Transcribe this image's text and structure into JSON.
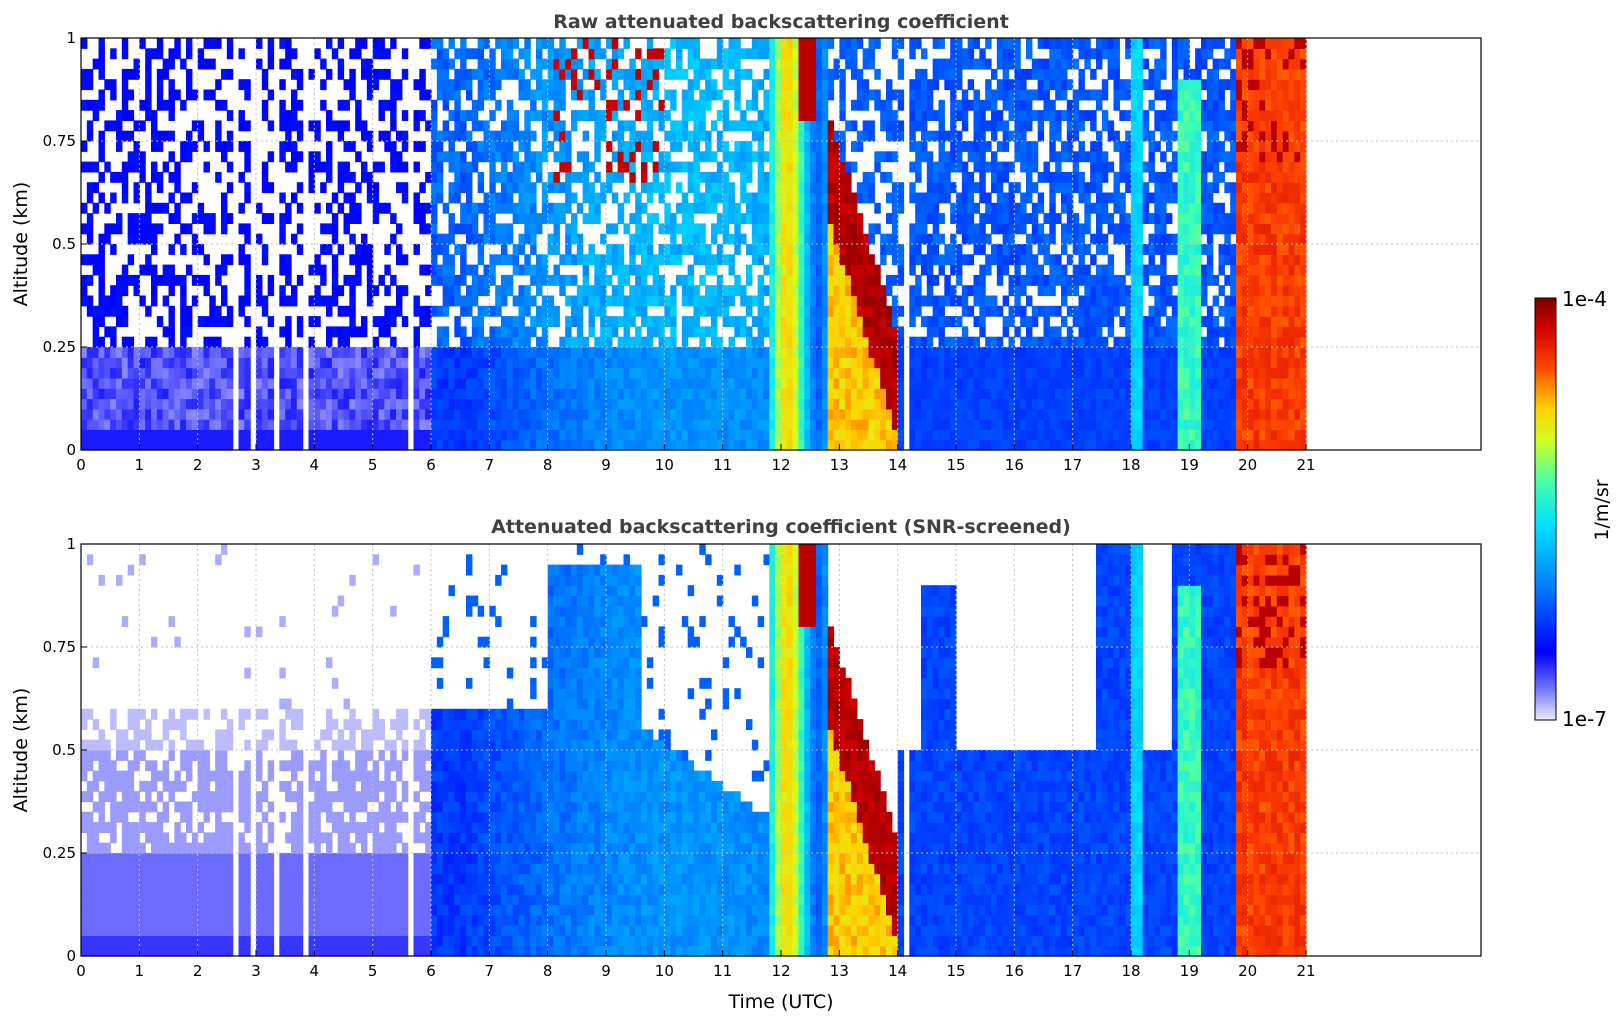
{
  "chart_data": [
    {
      "type": "heatmap",
      "title": "Raw attenuated backscattering coefficient",
      "ylabel": "Altitude (km)",
      "xlabel": "",
      "xlim": [
        0,
        24
      ],
      "ylim": [
        0,
        1
      ],
      "x_ticks": [
        "0",
        "1",
        "2",
        "3",
        "4",
        "5",
        "6",
        "7",
        "8",
        "9",
        "10",
        "11",
        "12",
        "13",
        "14",
        "15",
        "16",
        "17",
        "18",
        "19",
        "20",
        "21"
      ],
      "y_ticks": [
        "0",
        "0.25",
        "0.5",
        "0.75",
        "1"
      ],
      "data_end_hour": 21,
      "grid": true,
      "regimes": [
        {
          "hours": [
            0,
            6
          ],
          "description": "noisy",
          "level": "low"
        },
        {
          "hours": [
            6,
            11.8
          ],
          "level": "moderate"
        },
        {
          "hours": [
            11.8,
            12.8
          ],
          "level": "high"
        },
        {
          "hours": [
            12.8,
            14.0
          ],
          "level": "very high"
        },
        {
          "hours": [
            19.8,
            21
          ],
          "level": "very high"
        }
      ]
    },
    {
      "type": "heatmap",
      "title": "Attenuated backscattering coefficient (SNR-screened)",
      "ylabel": "Altitude (km)",
      "xlabel": "Time (UTC)",
      "xlim": [
        0,
        24
      ],
      "ylim": [
        0,
        1
      ],
      "x_ticks": [
        "0",
        "1",
        "2",
        "3",
        "4",
        "5",
        "6",
        "7",
        "8",
        "9",
        "10",
        "11",
        "12",
        "13",
        "14",
        "15",
        "16",
        "17",
        "18",
        "19",
        "20",
        "21"
      ],
      "y_ticks": [
        "0",
        "0.25",
        "0.5",
        "0.75",
        "1"
      ],
      "data_end_hour": 21,
      "grid": true
    }
  ],
  "colorbar": {
    "label": "1/m/sr",
    "min_label": "1e-7",
    "max_label": "1e-4",
    "scale": "log",
    "colormap": "jet (white at low end)"
  },
  "colors": {
    "title": "#404040",
    "grid": "#bfbfbf"
  }
}
